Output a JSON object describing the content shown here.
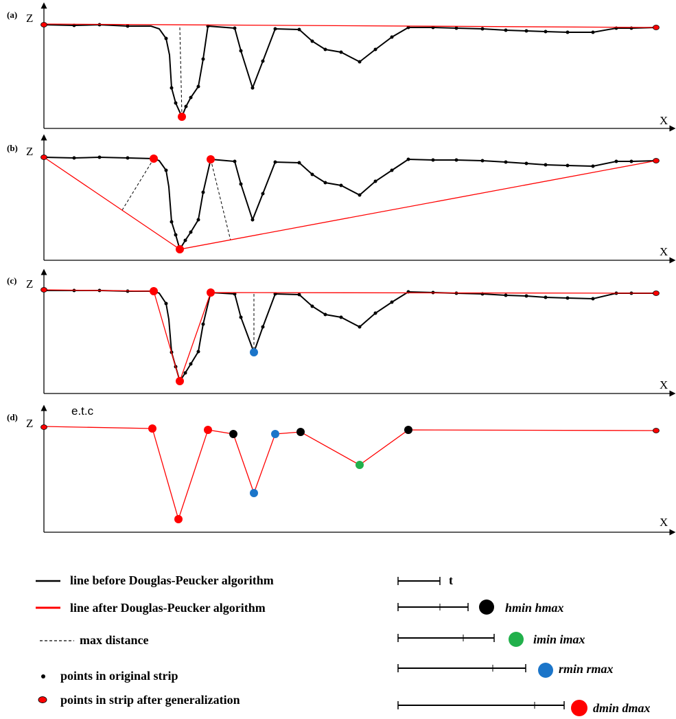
{
  "panels": [
    {
      "label": "(a)",
      "zlabel": "Z",
      "xlabel": "X"
    },
    {
      "label": "(b)",
      "zlabel": "Z",
      "xlabel": "X"
    },
    {
      "label": "(c)",
      "zlabel": "Z",
      "xlabel": "X"
    },
    {
      "label": "(d)",
      "zlabel": "Z",
      "xlabel": "X",
      "note": "e.t.c"
    }
  ],
  "legend": {
    "before": "line before Douglas-Peucker algorithm",
    "after": "line after Douglas-Peucker algorithm",
    "maxdist": "max distance",
    "orig": "points in original strip",
    "gen": "points in strip after generalization"
  },
  "scale": {
    "t": "t",
    "h": "hmin  hmax",
    "i": "imin  imax",
    "r": "rmin  rmax",
    "d": "dmin  dmax"
  },
  "colors": {
    "original_line": "#000000",
    "generalized_line": "#ff0000",
    "h_point": "#000000",
    "i_point": "#21b04b",
    "r_point": "#1b75c9",
    "d_point": "#ff0000"
  }
}
